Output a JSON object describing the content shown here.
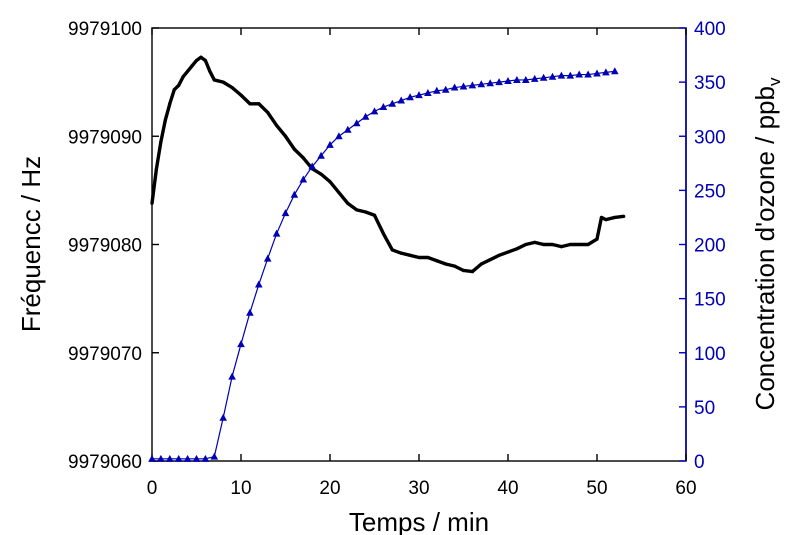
{
  "chart_data": {
    "type": "line",
    "xlabel": "Temps / min",
    "ylabel": "Fréquencc / Hz",
    "y2label_main": "Concentration d'ozone / ppb",
    "y2label_sub": "v",
    "xlim": [
      0,
      60
    ],
    "ylim": [
      9979060,
      9979100
    ],
    "y2lim": [
      0,
      400
    ],
    "xticks": [
      0,
      10,
      20,
      30,
      40,
      50,
      60
    ],
    "yticks": [
      9979060,
      9979070,
      9979080,
      9979090,
      9979100
    ],
    "y2ticks": [
      0,
      50,
      100,
      150,
      200,
      250,
      300,
      350,
      400
    ],
    "colors": {
      "frequency": "#000000",
      "ozone": "#0000b4"
    },
    "grid": false,
    "legend": "none",
    "series": [
      {
        "axis": "left",
        "marker": "none",
        "x": [
          0,
          0.5,
          1,
          1.5,
          2,
          2.5,
          3,
          3.5,
          4,
          4.5,
          5,
          5.5,
          6,
          6.5,
          7,
          8,
          9,
          10,
          11,
          12,
          13,
          14,
          15,
          16,
          17,
          18,
          19,
          20,
          21,
          22,
          23,
          24,
          25,
          26,
          27,
          28,
          29,
          30,
          31,
          32,
          33,
          34,
          35,
          36,
          37,
          38,
          39,
          40,
          41,
          42,
          43,
          44,
          45,
          46,
          47,
          48,
          49,
          50,
          50.5,
          51,
          52,
          53
        ],
        "values": [
          9979083.8,
          9979087,
          9979089.5,
          9979091.5,
          9979093,
          9979094.3,
          9979094.7,
          9979095.5,
          9979096,
          9979096.5,
          9979097,
          9979097.3,
          9979097,
          9979096,
          9979095.2,
          9979095,
          9979094.5,
          9979093.8,
          9979093,
          9979093,
          9979092.2,
          9979091,
          9979090,
          9979088.8,
          9979088,
          9979087,
          9979086.5,
          9979085.8,
          9979084.8,
          9979083.8,
          9979083.2,
          9979083,
          9979082.7,
          9979081,
          9979079.5,
          9979079.2,
          9979079,
          9979078.8,
          9979078.8,
          9979078.5,
          9979078.2,
          9979078,
          9979077.6,
          9979077.5,
          9979078.2,
          9979078.6,
          9979079,
          9979079.3,
          9979079.6,
          9979080,
          9979080.2,
          9979080,
          9979080,
          9979079.8,
          9979080,
          9979080,
          9979080,
          9979080.5,
          9979082.5,
          9979082.3,
          9979082.5,
          9979082.6
        ]
      },
      {
        "axis": "right",
        "marker": "triangle",
        "x": [
          0,
          1,
          2,
          3,
          4,
          5,
          6,
          7,
          8,
          9,
          10,
          11,
          12,
          13,
          14,
          15,
          16,
          17,
          18,
          19,
          20,
          21,
          22,
          23,
          24,
          25,
          26,
          27,
          28,
          29,
          30,
          31,
          32,
          33,
          34,
          35,
          36,
          37,
          38,
          39,
          40,
          41,
          42,
          43,
          44,
          45,
          46,
          47,
          48,
          49,
          50,
          51,
          52
        ],
        "values": [
          2,
          2,
          2,
          2,
          2,
          2,
          2,
          4,
          40,
          78,
          108,
          137,
          163,
          187,
          210,
          229,
          246,
          260,
          272,
          282,
          292,
          300,
          306,
          312,
          318,
          323,
          327,
          330,
          333,
          336,
          338,
          340,
          342,
          343,
          345,
          346,
          347,
          348,
          349,
          350,
          351,
          352,
          352,
          353,
          354,
          355,
          356,
          356,
          357,
          357,
          358,
          359,
          360
        ]
      }
    ]
  }
}
